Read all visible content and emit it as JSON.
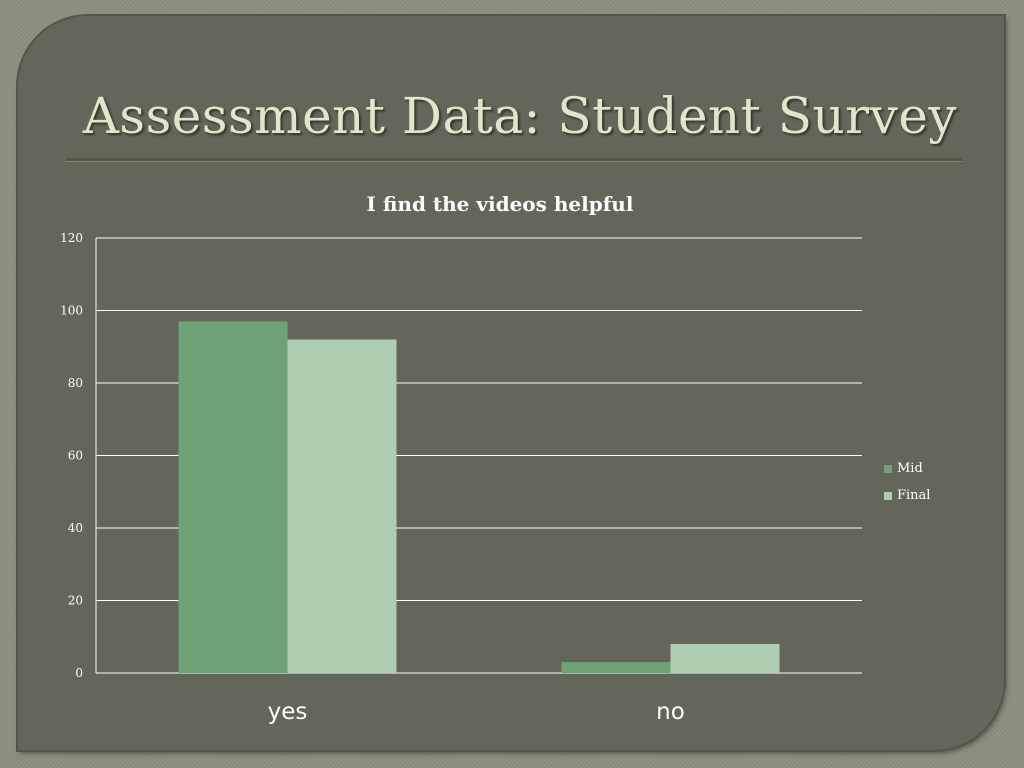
{
  "slide": {
    "title": "Assessment Data: Student Survey"
  },
  "colors": {
    "background": "#65665a",
    "title_text": "#e1e5c9",
    "gridline": "#ffffff",
    "mid_series": "#6ea277",
    "final_series": "#afceb1"
  },
  "chart_data": {
    "type": "bar",
    "title": "I find the videos helpful",
    "categories": [
      "yes",
      "no"
    ],
    "series": [
      {
        "name": "Mid",
        "values": [
          97,
          3
        ],
        "color": "#6ea277"
      },
      {
        "name": "Final",
        "values": [
          92,
          8
        ],
        "color": "#afceb1"
      }
    ],
    "ylim": [
      0,
      120
    ],
    "yticks": [
      "0",
      "20",
      "40",
      "60",
      "80",
      "100",
      "120"
    ],
    "xlabel": "",
    "ylabel": "",
    "grid": true,
    "legend_position": "right"
  }
}
